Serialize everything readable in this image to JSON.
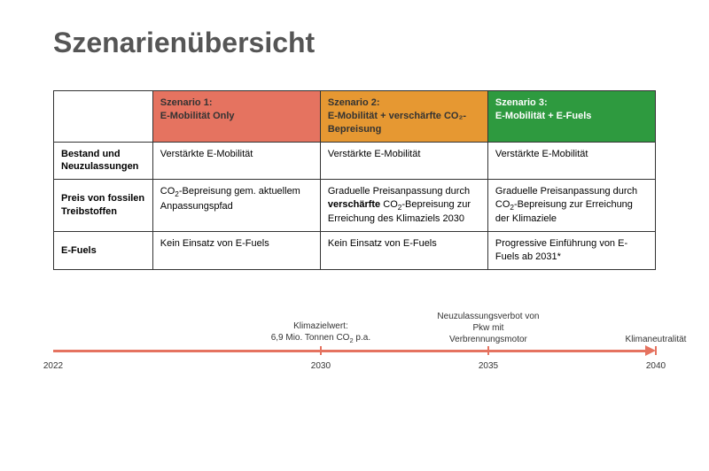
{
  "title": "Szenarienübersicht",
  "table": {
    "headers": [
      {
        "label_line1": "Szenario 1:",
        "label_line2": "E-Mobilität Only",
        "bg_color": "#e57360",
        "text_color": "#333333"
      },
      {
        "label_line1": "Szenario 2:",
        "label_line2": "E-Mobilität + verschärfte CO₂-Bepreisung",
        "bg_color": "#e69832",
        "text_color": "#333333"
      },
      {
        "label_line1": "Szenario 3:",
        "label_line2": "E-Mobilität + E-Fuels",
        "bg_color": "#2e9a3f",
        "text_color": "#ffffff"
      }
    ],
    "rows": [
      {
        "label": "Bestand und Neuzulassungen",
        "cells": [
          {
            "text": "Verstärkte E-Mobilität",
            "bold_part": ""
          },
          {
            "text": "Verstärkte E-Mobilität",
            "bold_part": ""
          },
          {
            "text": "Verstärkte E-Mobilität",
            "bold_part": ""
          }
        ]
      },
      {
        "label": "Preis von fossilen Treibstoffen",
        "cells": [
          {
            "text": "CO₂-Bepreisung gem. aktuellem Anpassungspfad",
            "bold_part": ""
          },
          {
            "text": "Graduelle Preisanpassung durch |verschärfte| CO₂-Bepreisung zur Erreichung des Klimaziels 2030",
            "bold_part": "verschärfte"
          },
          {
            "text": "Graduelle Preisanpassung durch CO₂-Bepreisung zur Erreichung der Klimaziele",
            "bold_part": ""
          }
        ]
      },
      {
        "label": "E-Fuels",
        "cells": [
          {
            "text": "Kein Einsatz von E-Fuels",
            "bold_part": ""
          },
          {
            "text": "Kein Einsatz von E-Fuels",
            "bold_part": ""
          },
          {
            "text": "Progressive Einführung von E-Fuels ab 2031*",
            "bold_part": ""
          }
        ]
      }
    ]
  },
  "timeline": {
    "line_color": "#e57360",
    "start_year": 2022,
    "end_year": 2040,
    "ticks": [
      {
        "year": "2030",
        "position_pct": 44.4,
        "label": "Klimazielwert:\n6,9 Mio. Tonnen CO₂ p.a."
      },
      {
        "year": "2035",
        "position_pct": 72.2,
        "label": "Neuzulassungsverbot von\nPkw mit\nVerbrennungsmotor"
      },
      {
        "year": "2040",
        "position_pct": 100,
        "label": "Klimaneutralität"
      }
    ],
    "years": [
      {
        "label": "2022",
        "position_pct": 0
      },
      {
        "label": "2030",
        "position_pct": 44.4
      },
      {
        "label": "2035",
        "position_pct": 72.2
      },
      {
        "label": "2040",
        "position_pct": 100
      }
    ]
  }
}
